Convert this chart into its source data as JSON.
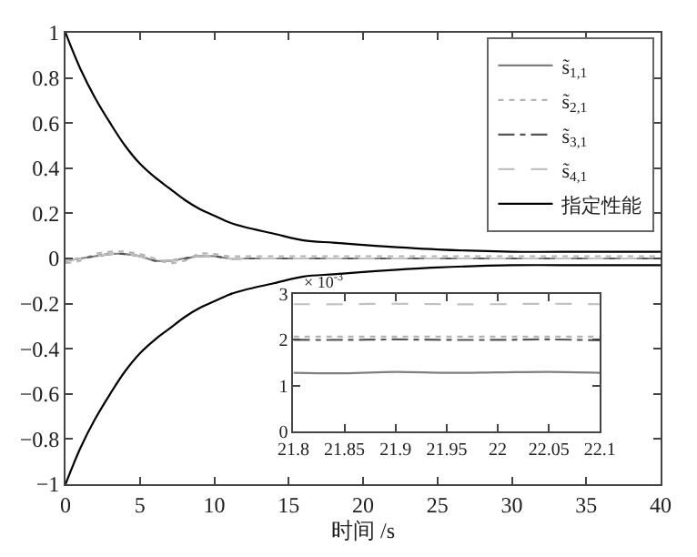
{
  "chart_data": [
    {
      "type": "line",
      "xlabel": "时间 /s",
      "xlim": [
        0,
        40
      ],
      "ylim": [
        -1,
        1
      ],
      "xticks": [
        0,
        5,
        10,
        15,
        20,
        25,
        30,
        35,
        40
      ],
      "yticks": [
        -1,
        -0.8,
        -0.6,
        -0.4,
        -0.2,
        0,
        0.2,
        0.4,
        0.6,
        0.8,
        1
      ],
      "legend": "top right",
      "marker": "none",
      "x": [
        0,
        1,
        2,
        3,
        4,
        5,
        6,
        7,
        8,
        9,
        10,
        11,
        12,
        14,
        16,
        18,
        20,
        25,
        30,
        35,
        40
      ],
      "series": [
        {
          "name": "s̃$_{1,1}$",
          "color": "#7f7f7f",
          "line_style": "solid",
          "values": [
            -0.01,
            0,
            0.01,
            0.02,
            0.02,
            0.01,
            -0.01,
            -0.01,
            0,
            0.01,
            0.01,
            0,
            0,
            0,
            0,
            0,
            0,
            0,
            0,
            0,
            0
          ]
        },
        {
          "name": "s̃$_{2,1}$",
          "color": "#b4b4b4",
          "line_style": "dotted",
          "values": [
            -0.02,
            -0.01,
            0.02,
            0.03,
            0.03,
            0.02,
            0,
            -0.02,
            -0.01,
            0.02,
            0.02,
            0.01,
            0.01,
            0.01,
            0.01,
            0.01,
            0.01,
            0.01,
            0.01,
            0.01,
            0.01
          ]
        },
        {
          "name": "s̃$_{3,1}$",
          "color": "#555555",
          "line_style": "dashdot",
          "values": [
            -0.01,
            0,
            0.01,
            0.02,
            0.02,
            0.01,
            -0.01,
            -0.01,
            0,
            0.01,
            0.01,
            0,
            0,
            0,
            0,
            0,
            0,
            0,
            0,
            0,
            0
          ]
        },
        {
          "name": "s̃$_{4,1}$",
          "color": "#c0c0c0",
          "line_style": "dashed",
          "values": [
            -0.01,
            0,
            0.01,
            0.02,
            0.02,
            0.01,
            -0.01,
            -0.01,
            0,
            0.01,
            0.01,
            0,
            0,
            0,
            0,
            0,
            0,
            0,
            0,
            0,
            0
          ]
        },
        {
          "name": "指定性能",
          "color": "#000000",
          "line_style": "solid",
          "values": [
            1,
            0.84,
            0.71,
            0.6,
            0.5,
            0.42,
            0.36,
            0.31,
            0.26,
            0.22,
            0.19,
            0.16,
            0.14,
            0.11,
            0.08,
            0.07,
            0.06,
            0.04,
            0.03,
            0.03,
            0.03
          ]
        },
        {
          "color": "#000000",
          "line_style": "solid",
          "values": [
            -1,
            -0.84,
            -0.71,
            -0.6,
            -0.5,
            -0.42,
            -0.36,
            -0.31,
            -0.26,
            -0.22,
            -0.19,
            -0.16,
            -0.14,
            -0.11,
            -0.08,
            -0.07,
            -0.06,
            -0.04,
            -0.03,
            -0.03,
            -0.03
          ]
        }
      ]
    },
    {
      "type": "line",
      "xlim": [
        21.8,
        22.1
      ],
      "ylim": [
        0,
        3
      ],
      "xticks": [
        21.8,
        21.85,
        21.9,
        21.95,
        22,
        22.05,
        22.1
      ],
      "yticks": [
        0,
        1,
        2,
        3
      ],
      "legend": false,
      "marker": "none",
      "annotations": [
        "× 10$^{-3}$"
      ],
      "x": [
        21.8,
        21.85,
        21.9,
        21.95,
        22,
        22.05,
        22.1
      ],
      "series": [
        {
          "color": "#7f7f7f",
          "line_style": "solid",
          "values": [
            1.28,
            1.27,
            1.3,
            1.28,
            1.29,
            1.3,
            1.28
          ]
        },
        {
          "color": "#b4b4b4",
          "line_style": "dotted",
          "values": [
            2.07,
            2.07,
            2.07,
            2.07,
            2.07,
            2.07,
            2.07
          ]
        },
        {
          "color": "#555555",
          "line_style": "dashdot",
          "values": [
            2.0,
            2.0,
            2.01,
            2.0,
            2.0,
            2.01,
            1.99
          ]
        },
        {
          "color": "#c0c0c0",
          "line_style": "dashed",
          "values": [
            2.78,
            2.78,
            2.79,
            2.78,
            2.78,
            2.79,
            2.78
          ]
        }
      ]
    }
  ]
}
